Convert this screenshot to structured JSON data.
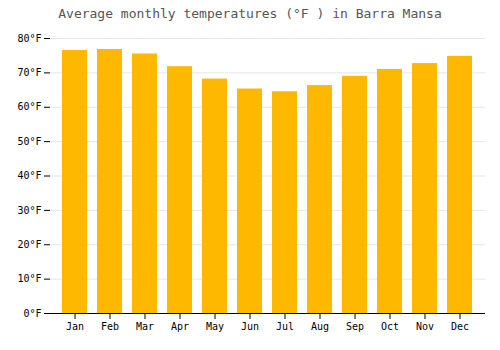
{
  "chart_data": {
    "type": "bar",
    "title": "Average monthly temperatures (°F ) in Barra Mansa",
    "categories": [
      "Jan",
      "Feb",
      "Mar",
      "Apr",
      "May",
      "Jun",
      "Jul",
      "Aug",
      "Sep",
      "Oct",
      "Nov",
      "Dec"
    ],
    "values": [
      76.5,
      76.8,
      75.5,
      71.8,
      68.2,
      65.3,
      64.5,
      66.3,
      69.0,
      71.0,
      72.7,
      74.8
    ],
    "color": "#FFB800",
    "ylim": [
      0,
      80
    ],
    "yticks": [
      {
        "value": 0,
        "label": "0°F"
      },
      {
        "value": 10,
        "label": "10°F"
      },
      {
        "value": 20,
        "label": "20°F"
      },
      {
        "value": 30,
        "label": "30°F"
      },
      {
        "value": 40,
        "label": "40°F"
      },
      {
        "value": 50,
        "label": "50°F"
      },
      {
        "value": 60,
        "label": "60°F"
      },
      {
        "value": 70,
        "label": "70°F"
      },
      {
        "value": 80,
        "label": "80°F"
      }
    ],
    "grid": true
  }
}
